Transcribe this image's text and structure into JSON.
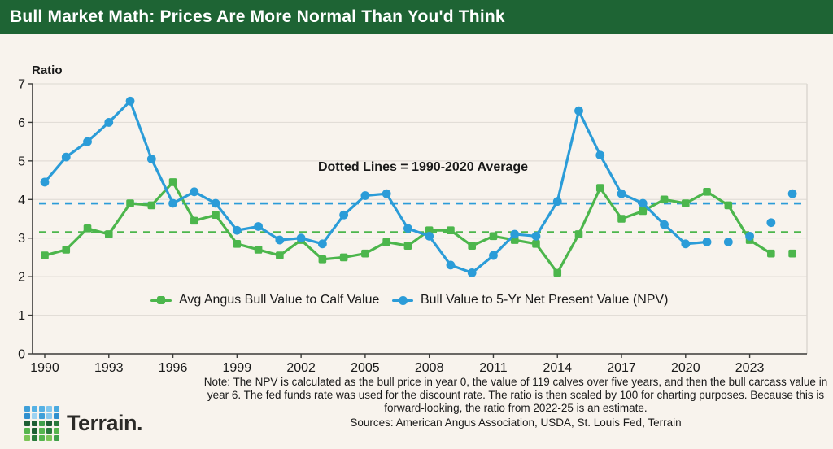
{
  "page": {
    "background": "#F8F3ED"
  },
  "header": {
    "title": "Bull Market Math: Prices Are More Normal Than You'd Think",
    "bg": "#1E6434",
    "text_color": "#FFFFFF"
  },
  "chart_data": {
    "type": "line",
    "title": "Bull Market Math: Prices Are More Normal Than You'd Think",
    "ylabel": "Ratio",
    "xlabel": "",
    "ylim": [
      0,
      7
    ],
    "y_ticks": [
      0,
      1,
      2,
      3,
      4,
      5,
      6,
      7
    ],
    "x_ticks": [
      1990,
      1993,
      1996,
      1999,
      2002,
      2005,
      2008,
      2011,
      2014,
      2017,
      2020,
      2023
    ],
    "grid": "horizontal",
    "legend_position": "bottom-inside",
    "annotation": "Dotted Lines = 1990-2020 Average",
    "x": [
      1990,
      1991,
      1992,
      1993,
      1994,
      1995,
      1996,
      1997,
      1998,
      1999,
      2000,
      2001,
      2002,
      2003,
      2004,
      2005,
      2006,
      2007,
      2008,
      2009,
      2010,
      2011,
      2012,
      2013,
      2014,
      2015,
      2016,
      2017,
      2018,
      2019,
      2020,
      2021,
      2022,
      2023,
      2024,
      2025
    ],
    "series": [
      {
        "name": "Avg Angus Bull Value to Calf Value",
        "color": "#4CB64C",
        "marker": "square",
        "connected_through": 2024,
        "values": [
          2.55,
          2.7,
          3.25,
          3.1,
          3.9,
          3.85,
          4.45,
          3.45,
          3.6,
          2.85,
          2.7,
          2.55,
          2.95,
          2.45,
          2.5,
          2.6,
          2.9,
          2.8,
          3.2,
          3.2,
          2.8,
          3.05,
          2.95,
          2.85,
          2.1,
          3.1,
          4.3,
          3.5,
          3.7,
          4.0,
          3.9,
          4.2,
          3.85,
          2.95,
          2.6,
          2.6
        ]
      },
      {
        "name": "Bull Value to 5-Yr Net Present Value (NPV)",
        "color": "#2B9CD8",
        "marker": "circle",
        "connected_through": 2021,
        "values": [
          4.45,
          5.1,
          5.5,
          6.0,
          6.55,
          5.05,
          3.9,
          4.2,
          3.9,
          3.2,
          3.3,
          2.95,
          3.0,
          2.85,
          3.6,
          4.1,
          4.15,
          3.25,
          3.05,
          2.3,
          2.1,
          2.55,
          3.1,
          3.05,
          3.95,
          6.3,
          5.15,
          4.15,
          3.9,
          3.35,
          2.85,
          2.9,
          2.9,
          3.05,
          3.4,
          4.15
        ]
      }
    ],
    "avg_lines": [
      {
        "series": "Avg Angus Bull Value to Calf Value",
        "value": 3.15,
        "color": "#4CB64C",
        "period": "1990-2020"
      },
      {
        "series": "Bull Value to 5-Yr Net Present Value (NPV)",
        "value": 3.9,
        "color": "#2B9CD8",
        "period": "1990-2020"
      }
    ],
    "colors": {
      "gridline": "#E2DDD7",
      "right_border": "#DCD7D1",
      "axis": "#3A3A38",
      "label": "#1A1A1A"
    }
  },
  "footer": {
    "note": "Note: The NPV is calculated as the bull price in year 0, the value of 119 calves over five years, and then the bull carcass value in year 6. The fed funds rate was used for the discount rate. The ratio is then scaled by 100 for charting purposes. Because this is forward-looking, the ratio from 2022-25 is an estimate.",
    "sources": "Sources: American Angus Association, USDA, St. Louis Fed, Terrain"
  },
  "logo": {
    "text": "Terrain.",
    "grid_colors": [
      [
        "#3F9FD8",
        "#56B1E4",
        "#56B1E4",
        "#7FC6EE",
        "#4AA9DF"
      ],
      [
        "#2F8FCE",
        "#9ED3F2",
        "#3F9FD8",
        "#8AC9EE",
        "#2F8FCE"
      ],
      [
        "#1E5F34",
        "#1E5F34",
        "#3FA04A",
        "#1E5F34",
        "#2A7A3C"
      ],
      [
        "#56B54E",
        "#1E5F34",
        "#56B54E",
        "#2A7A3C",
        "#56B54E"
      ],
      [
        "#7CC558",
        "#2A7A3C",
        "#56B54E",
        "#7CC558",
        "#3FA04A"
      ]
    ]
  }
}
